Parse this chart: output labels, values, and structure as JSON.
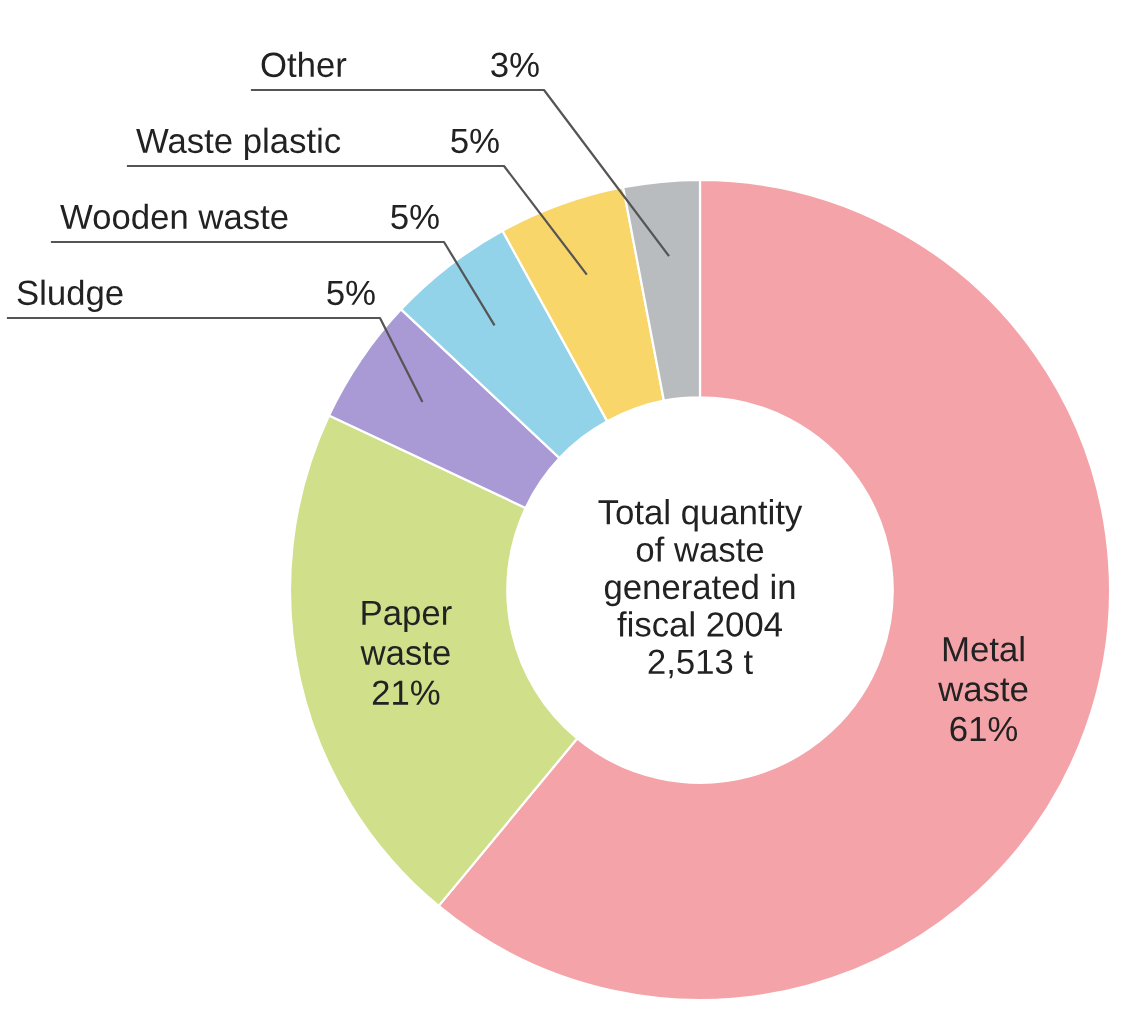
{
  "chart_data": {
    "type": "donut",
    "categories": [
      "Metal waste",
      "Paper waste",
      "Sludge",
      "Wooden waste",
      "Waste plastic",
      "Other"
    ],
    "values": [
      61,
      21,
      5,
      5,
      5,
      3
    ],
    "colors": [
      "#f4a3a8",
      "#cfdf8a",
      "#a99ad6",
      "#93d3ea",
      "#f9d66a",
      "#b9bcbf"
    ],
    "value_labels": [
      "61%",
      "21%",
      "5%",
      "5%",
      "5%",
      "3%"
    ],
    "annotations": [
      "Total quantity\nof waste\ngenerated in\nfiscal 2004\n2,513 t"
    ],
    "legend": false
  }
}
